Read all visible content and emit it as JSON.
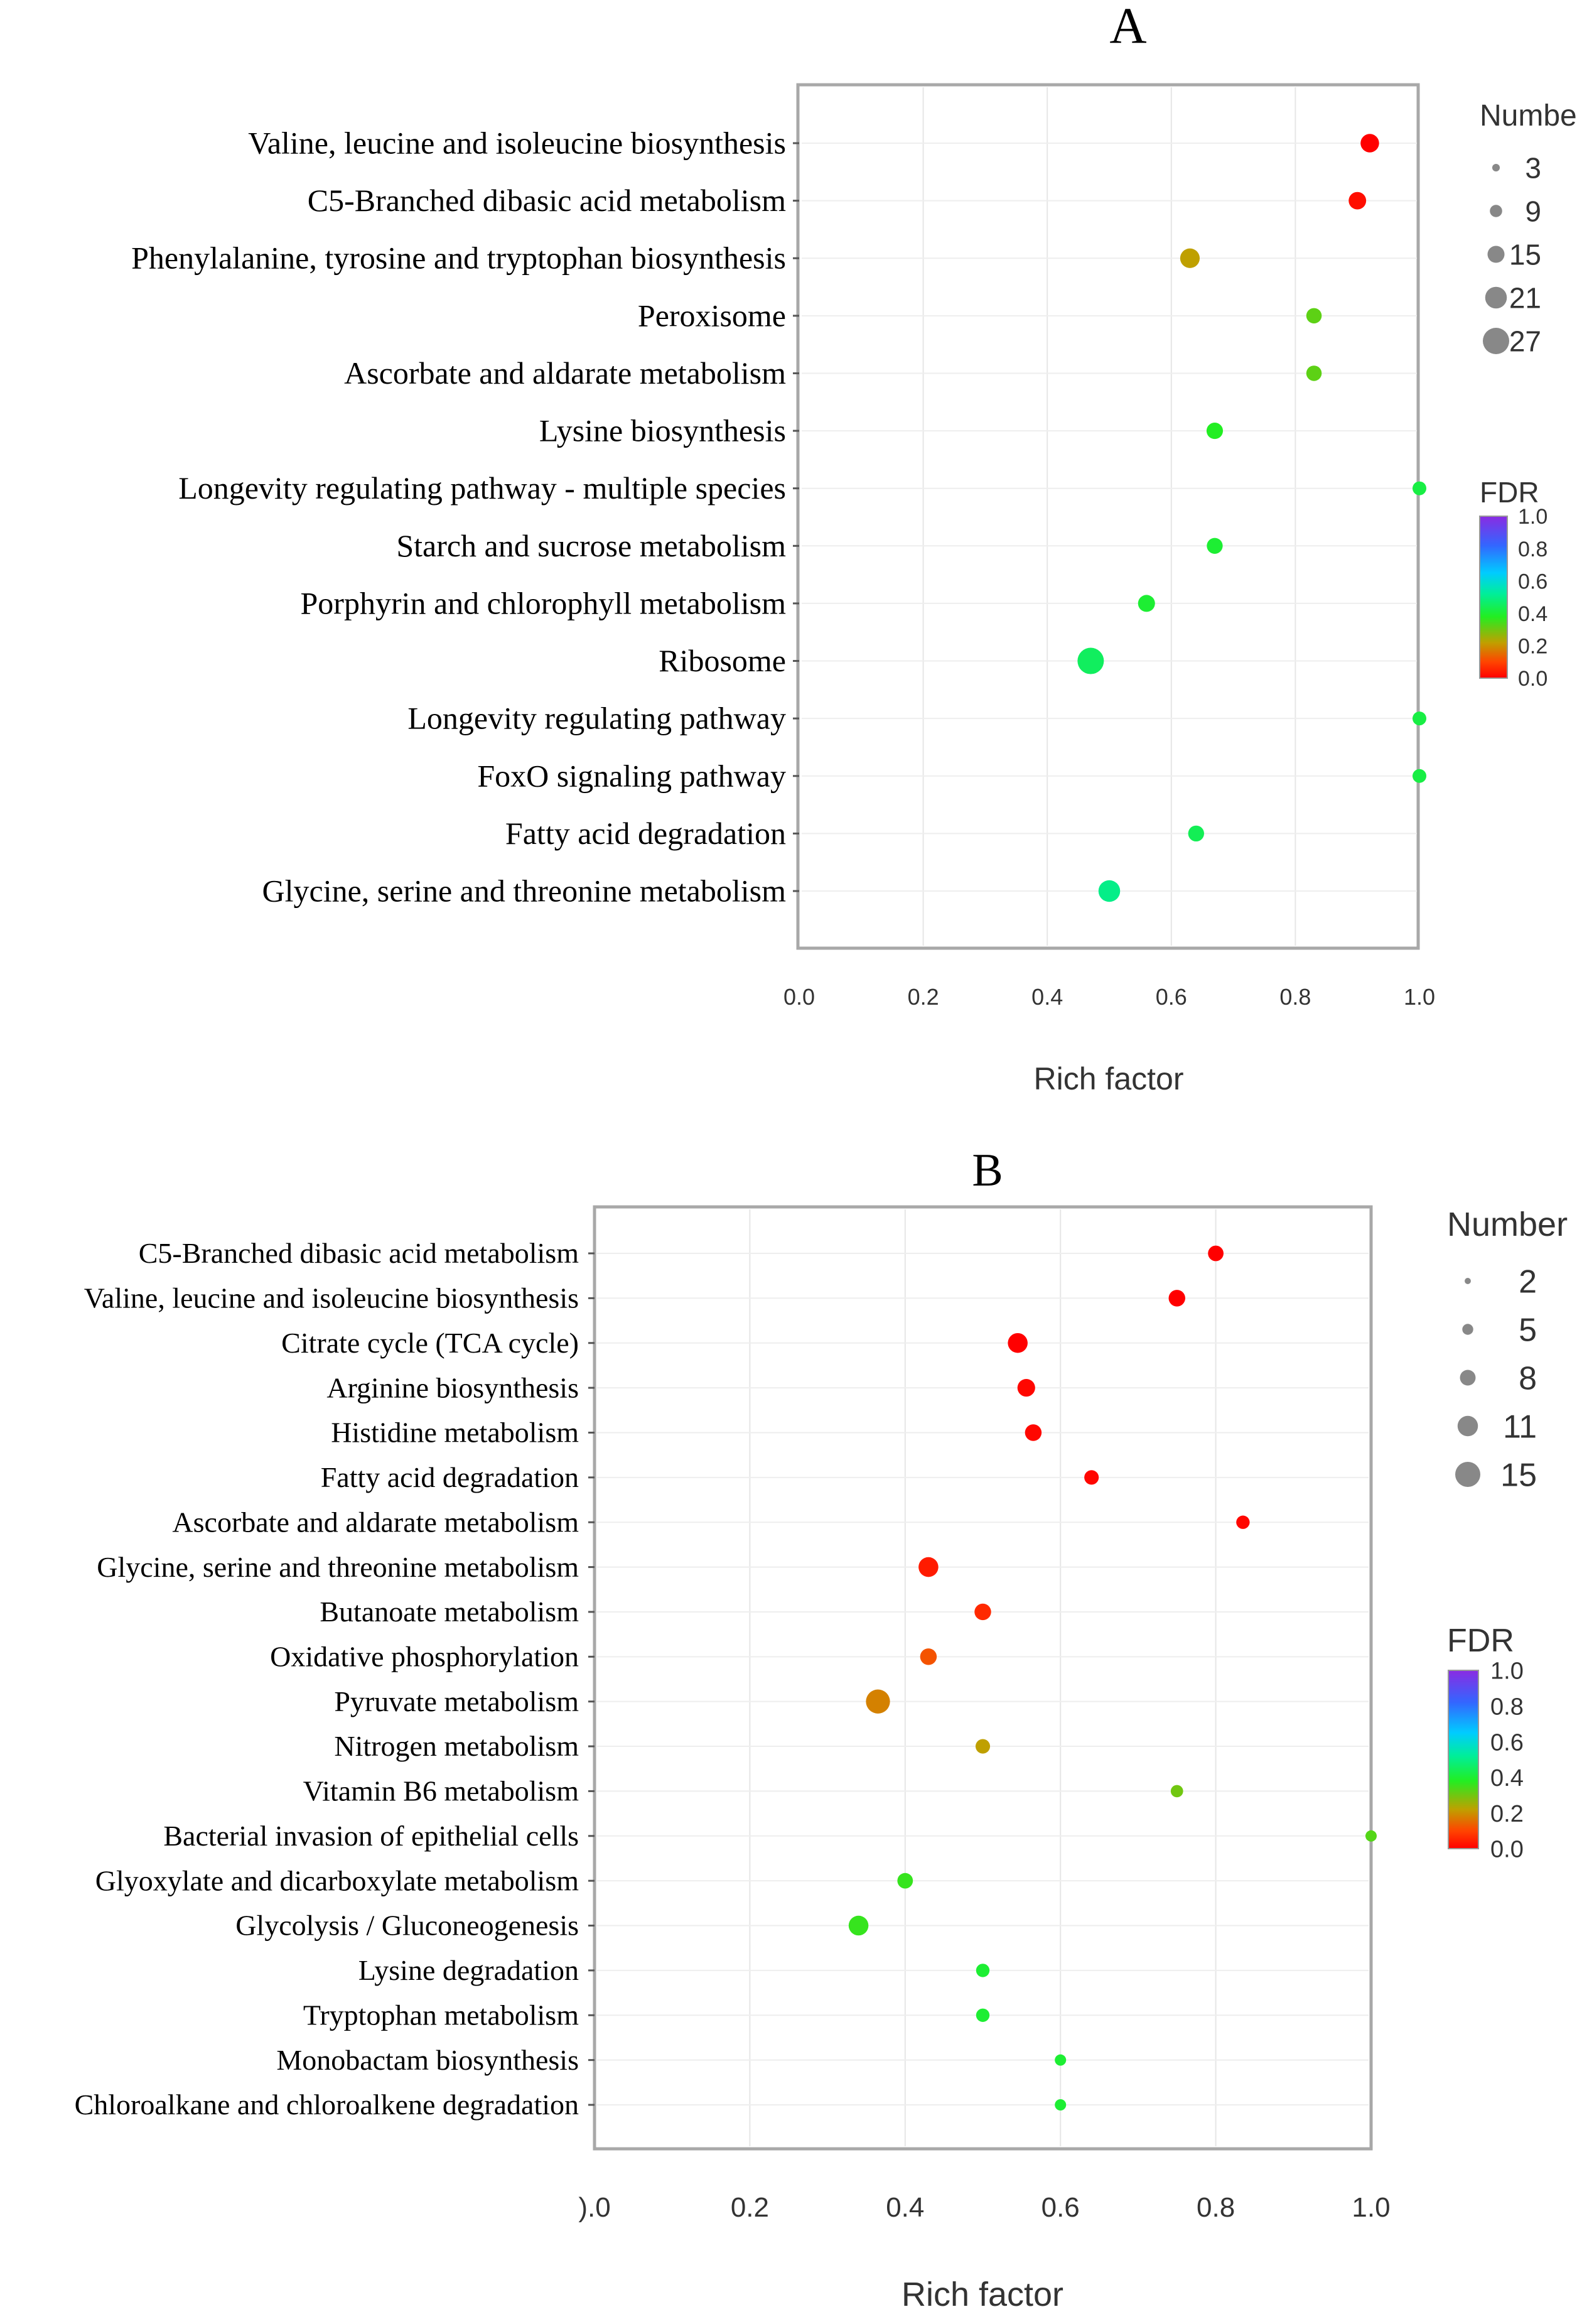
{
  "chart_data": [
    {
      "panel": "A",
      "type": "scatter",
      "title": "A",
      "xlabel": "Rich factor",
      "ylabel": "",
      "xlim": [
        0.0,
        1.0
      ],
      "xticks": [
        "0.0",
        "0.2",
        "0.4",
        "0.6",
        "0.8",
        "1.0"
      ],
      "grid": true,
      "categories": [
        "Valine, leucine and isoleucine biosynthesis",
        "C5-Branched dibasic acid metabolism",
        "Phenylalanine, tyrosine and tryptophan biosynthesis",
        "Peroxisome",
        "Ascorbate and aldarate metabolism",
        "Lysine biosynthesis",
        "Longevity regulating pathway - multiple species",
        "Starch and sucrose metabolism",
        "Porphyrin and chlorophyll metabolism",
        "Ribosome",
        "Longevity regulating pathway",
        "FoxO signaling pathway",
        "Fatty acid degradation",
        "Glycine, serine and threonine metabolism"
      ],
      "rich_factor": [
        0.92,
        0.9,
        0.63,
        0.83,
        0.83,
        0.67,
        1.0,
        0.67,
        0.56,
        0.47,
        1.0,
        1.0,
        0.64,
        0.5
      ],
      "number": [
        12,
        10,
        14,
        6,
        6,
        8,
        3,
        7,
        9,
        27,
        3,
        3,
        7,
        18
      ],
      "fdr": [
        0.0,
        0.02,
        0.22,
        0.32,
        0.32,
        0.38,
        0.42,
        0.4,
        0.4,
        0.45,
        0.42,
        0.42,
        0.44,
        0.5
      ],
      "size_legend": {
        "title": "Number",
        "values": [
          "3",
          "9",
          "15",
          "21",
          "27"
        ],
        "min": 3,
        "max": 27
      },
      "color_legend": {
        "title": "FDR",
        "ticks": [
          "1.0",
          "0.8",
          "0.6",
          "0.4",
          "0.2",
          "0.0"
        ]
      }
    },
    {
      "panel": "B",
      "type": "scatter",
      "title": "B",
      "xlabel": "Rich factor",
      "ylabel": "",
      "xlim": [
        0.0,
        1.0
      ],
      "xticks": [
        ").0",
        "0.2",
        "0.4",
        "0.6",
        "0.8",
        "1.0"
      ],
      "grid": true,
      "categories": [
        "C5-Branched dibasic acid metabolism",
        "Valine, leucine and isoleucine biosynthesis",
        "Citrate cycle (TCA cycle)",
        "Arginine biosynthesis",
        "Histidine metabolism",
        "Fatty acid degradation",
        "Ascorbate and aldarate metabolism",
        "Glycine, serine and threonine metabolism",
        "Butanoate metabolism",
        "Oxidative phosphorylation",
        "Pyruvate metabolism",
        "Nitrogen metabolism",
        "Vitamin B6 metabolism",
        "Bacterial invasion of epithelial cells",
        "Glyoxylate and dicarboxylate metabolism",
        "Glycolysis / Gluconeogenesis",
        "Lysine degradation",
        "Tryptophan metabolism",
        "Monobactam biosynthesis",
        "Chloroalkane and chloroalkene degradation"
      ],
      "rich_factor": [
        0.8,
        0.75,
        0.545,
        0.556,
        0.565,
        0.64,
        0.835,
        0.43,
        0.5,
        0.43,
        0.365,
        0.5,
        0.75,
        1.0,
        0.4,
        0.34,
        0.5,
        0.5,
        0.6,
        0.6
      ],
      "number": [
        6,
        7,
        10,
        8,
        7,
        5,
        4,
        10,
        7,
        7,
        14,
        5,
        3,
        2,
        6,
        10,
        4,
        4,
        2,
        2
      ],
      "fdr": [
        0.0,
        0.0,
        0.0,
        0.01,
        0.01,
        0.01,
        0.01,
        0.04,
        0.06,
        0.12,
        0.18,
        0.22,
        0.3,
        0.33,
        0.36,
        0.36,
        0.4,
        0.4,
        0.4,
        0.4
      ],
      "size_legend": {
        "title": "Number",
        "values": [
          "2",
          "5",
          "8",
          "11",
          "15"
        ],
        "min": 2,
        "max": 15
      },
      "color_legend": {
        "title": "FDR",
        "ticks": [
          "1.0",
          "0.8",
          "0.6",
          "0.4",
          "0.2",
          "0.0"
        ]
      }
    }
  ]
}
